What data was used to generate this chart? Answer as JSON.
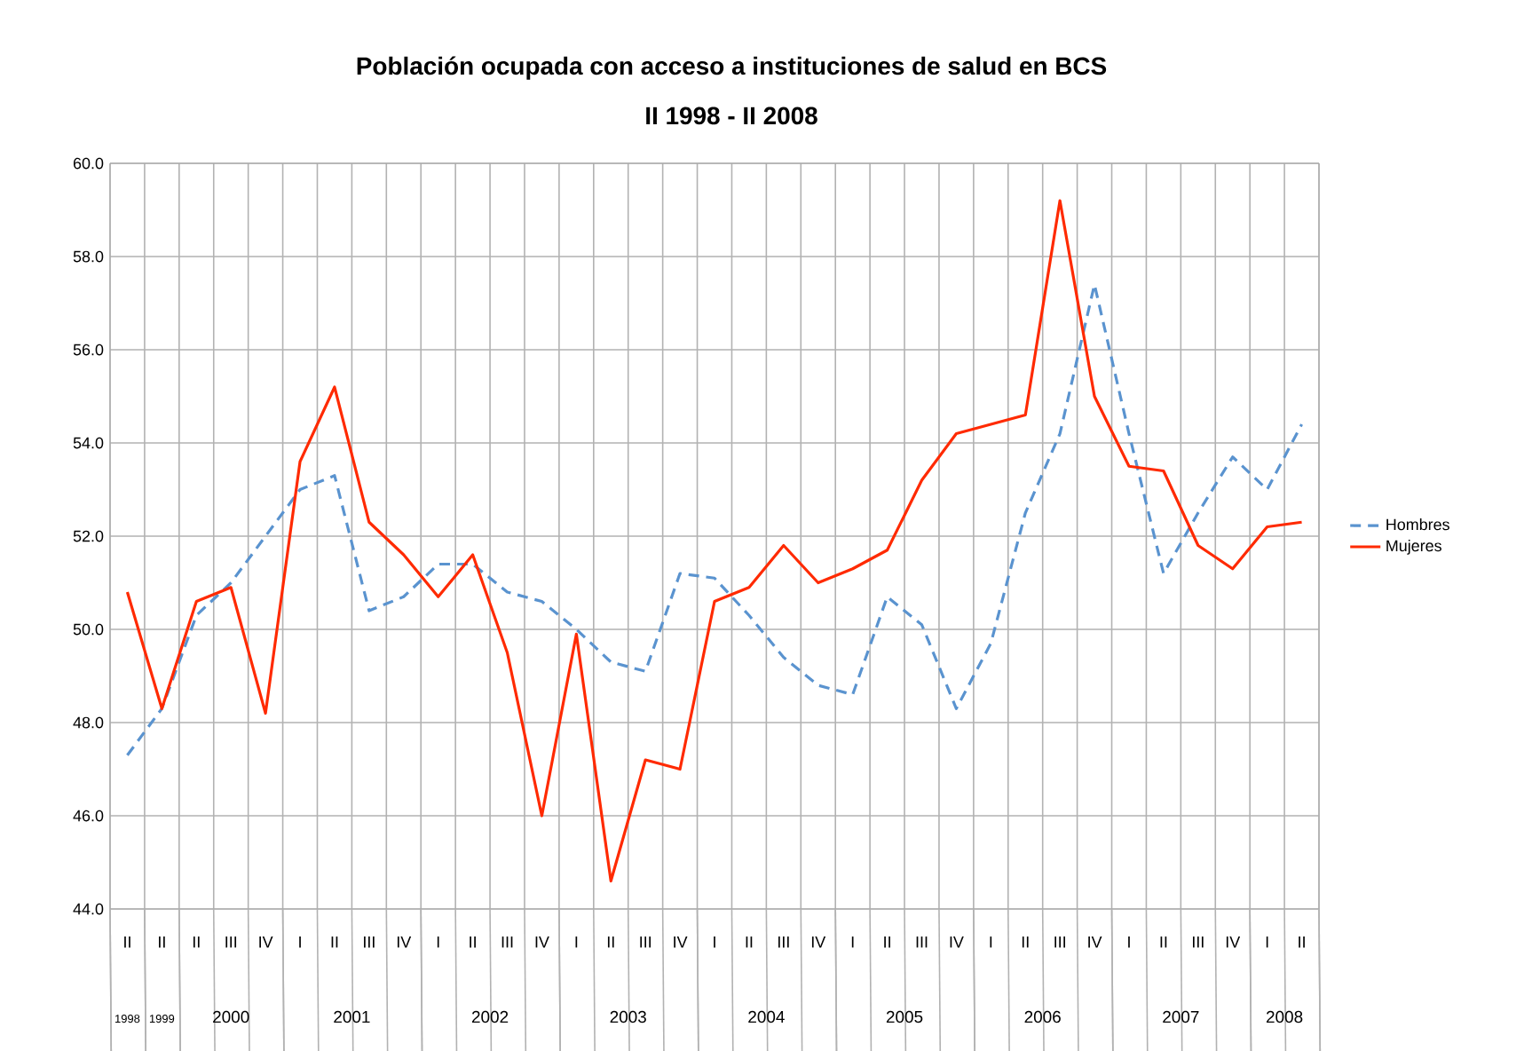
{
  "chart_data": {
    "type": "line",
    "title": "Población ocupada con acceso a instituciones de salud en BCS",
    "subtitle": "II 1998 - II 2008",
    "categories": [
      "II",
      "II",
      "II",
      "III",
      "IV",
      "I",
      "II",
      "III",
      "IV",
      "I",
      "II",
      "III",
      "IV",
      "I",
      "II",
      "III",
      "IV",
      "I",
      "II",
      "III",
      "IV",
      "I",
      "II",
      "III",
      "IV",
      "I",
      "II",
      "III",
      "IV",
      "I",
      "II",
      "III",
      "IV",
      "I",
      "II"
    ],
    "annotations": [
      "1998",
      "1999",
      "2000",
      "2001",
      "2002",
      "2003",
      "2004",
      "2005",
      "2006",
      "2007",
      "2008"
    ],
    "series": [
      {
        "name": "Hombres",
        "color": "#5a93cf",
        "line_style": "dashed",
        "values": [
          47.3,
          48.3,
          50.3,
          51.0,
          52.0,
          53.0,
          53.3,
          50.4,
          50.7,
          51.4,
          51.4,
          50.8,
          50.6,
          50.0,
          49.3,
          49.1,
          51.2,
          51.1,
          50.3,
          49.4,
          48.8,
          48.6,
          50.7,
          50.1,
          48.3,
          49.7,
          52.5,
          54.2,
          57.4,
          54.2,
          51.2,
          52.5,
          53.7,
          53.0,
          54.4
        ]
      },
      {
        "name": "Mujeres",
        "color": "#ff2a00",
        "line_style": "solid",
        "values": [
          50.8,
          48.3,
          50.6,
          50.9,
          48.2,
          53.6,
          55.2,
          52.3,
          51.6,
          50.7,
          51.6,
          49.5,
          46.0,
          49.9,
          44.6,
          47.2,
          47.0,
          50.6,
          50.9,
          51.8,
          51.0,
          51.3,
          51.7,
          53.2,
          54.2,
          54.4,
          54.6,
          59.2,
          55.0,
          53.5,
          53.4,
          51.8,
          51.3,
          52.2,
          52.3
        ]
      }
    ],
    "ylim": [
      44,
      60
    ],
    "yticks": [
      {
        "value": 44,
        "label": "44.0"
      },
      {
        "value": 46,
        "label": "46.0"
      },
      {
        "value": 48,
        "label": "48.0"
      },
      {
        "value": 50,
        "label": "50.0"
      },
      {
        "value": 52,
        "label": "52.0"
      },
      {
        "value": 54,
        "label": "54.0"
      },
      {
        "value": 56,
        "label": "56.0"
      },
      {
        "value": 58,
        "label": "58.0"
      },
      {
        "value": 60,
        "label": "60.0"
      }
    ],
    "grid": true,
    "legend": "right",
    "marker": "none"
  }
}
